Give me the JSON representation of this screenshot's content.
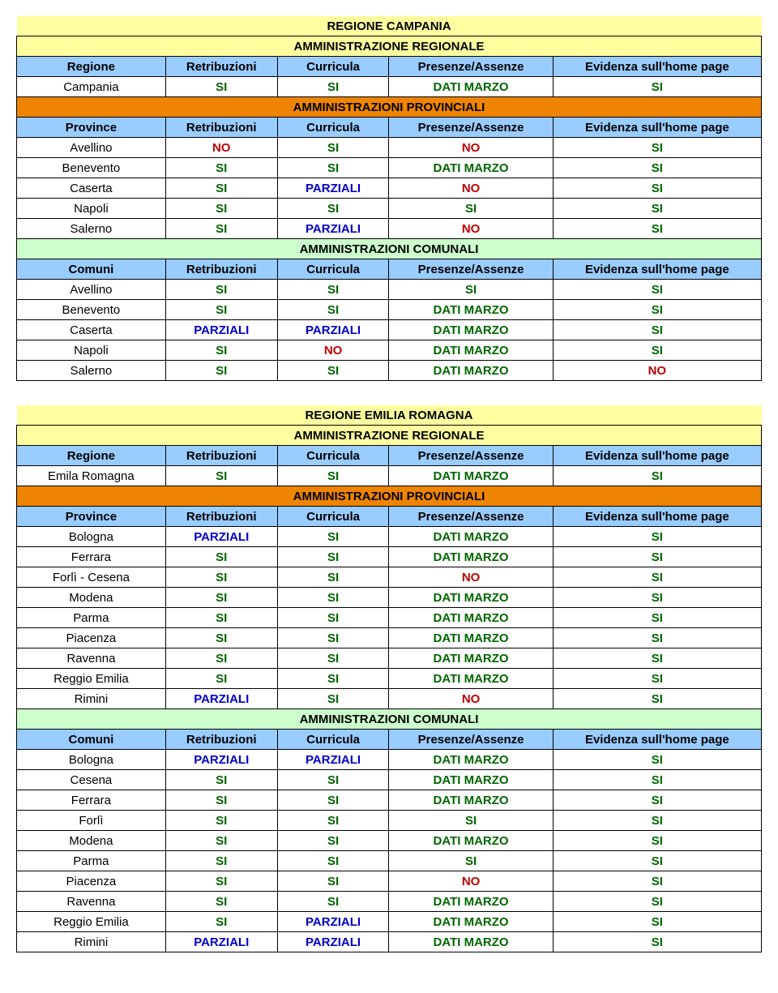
{
  "si": "SI",
  "no": "NO",
  "pz": "PARZIALI",
  "dm": "DATI MARZO",
  "colors": {
    "yellow": "#ffffa0",
    "orange": "#ee8400",
    "lightblue": "#99ccff",
    "lightgreen": "#ccffcc",
    "si": "#006600",
    "no": "#bf0000",
    "parziali": "#0000cc"
  },
  "hdr_region": "Regione",
  "hdr_province": "Province",
  "hdr_comuni": "Comuni",
  "hdr_retribuzioni": "Retribuzioni",
  "hdr_curricula": "Curricula",
  "hdr_presenze": "Presenze/Assenze",
  "hdr_evidenza": "Evidenza sull'home page",
  "label_admin_reg": "AMMINISTRAZIONE REGIONALE",
  "label_admin_prov": "AMMINISTRAZIONI PROVINCIALI",
  "label_admin_com": "AMMINISTRAZIONI COMUNALI",
  "campania": {
    "title": "REGIONE CAMPANIA",
    "region_row": {
      "name": "Campania",
      "v": [
        "si",
        "si",
        "dm",
        "si"
      ]
    },
    "provinces": [
      {
        "name": "Avellino",
        "v": [
          "no",
          "si",
          "no",
          "si"
        ]
      },
      {
        "name": "Benevento",
        "v": [
          "si",
          "si",
          "dm",
          "si"
        ]
      },
      {
        "name": "Caserta",
        "v": [
          "si",
          "pz",
          "no",
          "si"
        ]
      },
      {
        "name": "Napoli",
        "v": [
          "si",
          "si",
          "si",
          "si"
        ]
      },
      {
        "name": "Salerno",
        "v": [
          "si",
          "pz",
          "no",
          "si"
        ]
      }
    ],
    "comuni": [
      {
        "name": "Avellino",
        "v": [
          "si",
          "si",
          "si",
          "si"
        ]
      },
      {
        "name": "Benevento",
        "v": [
          "si",
          "si",
          "dm",
          "si"
        ]
      },
      {
        "name": "Caserta",
        "v": [
          "pz",
          "pz",
          "dm",
          "si"
        ]
      },
      {
        "name": "Napoli",
        "v": [
          "si",
          "no",
          "dm",
          "si"
        ]
      },
      {
        "name": "Salerno",
        "v": [
          "si",
          "si",
          "dm",
          "no"
        ]
      }
    ]
  },
  "emilia": {
    "title": "REGIONE EMILIA ROMAGNA",
    "region_row": {
      "name": "Emila Romagna",
      "v": [
        "si",
        "si",
        "dm",
        "si"
      ]
    },
    "provinces": [
      {
        "name": "Bologna",
        "v": [
          "pz",
          "si",
          "dm",
          "si"
        ]
      },
      {
        "name": "Ferrara",
        "v": [
          "si",
          "si",
          "dm",
          "si"
        ]
      },
      {
        "name": "Forlì - Cesena",
        "v": [
          "si",
          "si",
          "no",
          "si"
        ]
      },
      {
        "name": "Modena",
        "v": [
          "si",
          "si",
          "dm",
          "si"
        ]
      },
      {
        "name": "Parma",
        "v": [
          "si",
          "si",
          "dm",
          "si"
        ]
      },
      {
        "name": "Piacenza",
        "v": [
          "si",
          "si",
          "dm",
          "si"
        ]
      },
      {
        "name": "Ravenna",
        "v": [
          "si",
          "si",
          "dm",
          "si"
        ]
      },
      {
        "name": "Reggio Emilia",
        "v": [
          "si",
          "si",
          "dm",
          "si"
        ]
      },
      {
        "name": "Rimini",
        "v": [
          "pz",
          "si",
          "no",
          "si"
        ]
      }
    ],
    "comuni": [
      {
        "name": "Bologna",
        "v": [
          "pz",
          "pz",
          "dm",
          "si"
        ]
      },
      {
        "name": "Cesena",
        "v": [
          "si",
          "si",
          "dm",
          "si"
        ]
      },
      {
        "name": "Ferrara",
        "v": [
          "si",
          "si",
          "dm",
          "si"
        ]
      },
      {
        "name": "Forlì",
        "v": [
          "si",
          "si",
          "si",
          "si"
        ]
      },
      {
        "name": "Modena",
        "v": [
          "si",
          "si",
          "dm",
          "si"
        ]
      },
      {
        "name": "Parma",
        "v": [
          "si",
          "si",
          "si",
          "si"
        ]
      },
      {
        "name": "Piacenza",
        "v": [
          "si",
          "si",
          "no",
          "si"
        ]
      },
      {
        "name": "Ravenna",
        "v": [
          "si",
          "si",
          "dm",
          "si"
        ]
      },
      {
        "name": "Reggio Emilia",
        "v": [
          "si",
          "pz",
          "dm",
          "si"
        ]
      },
      {
        "name": "Rimini",
        "v": [
          "pz",
          "pz",
          "dm",
          "si"
        ]
      }
    ]
  },
  "col_widths_pct": [
    20,
    15,
    15,
    22,
    28
  ]
}
